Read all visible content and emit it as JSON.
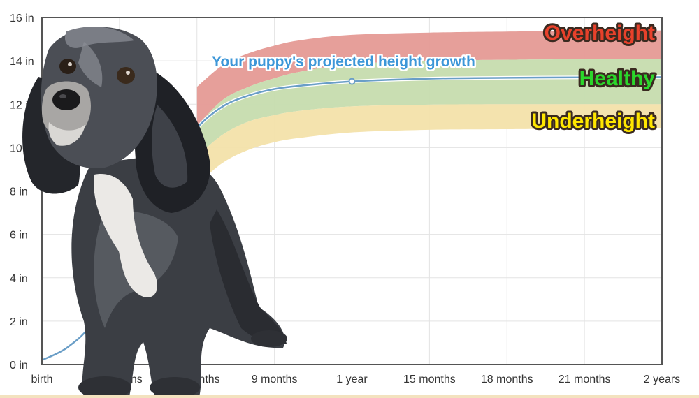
{
  "chart_data": {
    "type": "area",
    "title": "",
    "xlabel": "",
    "ylabel": "",
    "ylim": [
      0,
      16
    ],
    "xlim": [
      0,
      24
    ],
    "y_ticks": [
      {
        "value": 0,
        "label": "0 in"
      },
      {
        "value": 2,
        "label": "2 in"
      },
      {
        "value": 4,
        "label": "4 in"
      },
      {
        "value": 6,
        "label": "6 in"
      },
      {
        "value": 8,
        "label": "8 in"
      },
      {
        "value": 10,
        "label": "10 in"
      },
      {
        "value": 12,
        "label": "12 in"
      },
      {
        "value": 14,
        "label": "14 in"
      },
      {
        "value": 16,
        "label": "16 in"
      }
    ],
    "x_ticks": [
      {
        "value": 0,
        "label": "birth"
      },
      {
        "value": 3,
        "label": "3 months"
      },
      {
        "value": 6,
        "label": "6 months"
      },
      {
        "value": 9,
        "label": "9 months"
      },
      {
        "value": 12,
        "label": "1 year"
      },
      {
        "value": 15,
        "label": "15 months"
      },
      {
        "value": 18,
        "label": "18 months"
      },
      {
        "value": 21,
        "label": "21 months"
      },
      {
        "value": 24,
        "label": "2 years"
      }
    ],
    "grid": true,
    "bands": [
      {
        "name": "Overheight",
        "color": "#e59a95",
        "text_color": "#e8412b",
        "lower": [
          [
            6,
            11.0
          ],
          [
            7,
            12.2
          ],
          [
            8,
            12.8
          ],
          [
            9,
            13.2
          ],
          [
            10,
            13.5
          ],
          [
            12,
            13.85
          ],
          [
            15,
            14.0
          ],
          [
            18,
            14.05
          ],
          [
            24,
            14.1
          ]
        ],
        "upper": [
          [
            6,
            12.8
          ],
          [
            7,
            13.8
          ],
          [
            8,
            14.35
          ],
          [
            9,
            14.7
          ],
          [
            10,
            14.95
          ],
          [
            12,
            15.2
          ],
          [
            15,
            15.3
          ],
          [
            18,
            15.35
          ],
          [
            24,
            15.4
          ]
        ]
      },
      {
        "name": "Healthy",
        "color": "#c6dcae",
        "text_color": "#2bd62b",
        "lower": [
          [
            6,
            9.6
          ],
          [
            7,
            10.6
          ],
          [
            8,
            11.2
          ],
          [
            9,
            11.5
          ],
          [
            10,
            11.7
          ],
          [
            12,
            11.9
          ],
          [
            15,
            11.98
          ],
          [
            18,
            12.0
          ],
          [
            24,
            12.0
          ]
        ],
        "upper": [
          [
            6,
            11.0
          ],
          [
            7,
            12.2
          ],
          [
            8,
            12.8
          ],
          [
            9,
            13.2
          ],
          [
            10,
            13.5
          ],
          [
            12,
            13.85
          ],
          [
            15,
            14.0
          ],
          [
            18,
            14.05
          ],
          [
            24,
            14.1
          ]
        ]
      },
      {
        "name": "Underheight",
        "color": "#f3e2aa",
        "text_color": "#ffe600",
        "lower": [
          [
            6,
            8.3
          ],
          [
            7,
            9.3
          ],
          [
            8,
            9.9
          ],
          [
            9,
            10.25
          ],
          [
            10,
            10.45
          ],
          [
            12,
            10.7
          ],
          [
            15,
            10.82
          ],
          [
            18,
            10.85
          ],
          [
            24,
            10.9
          ]
        ],
        "upper": [
          [
            6,
            9.6
          ],
          [
            7,
            10.6
          ],
          [
            8,
            11.2
          ],
          [
            9,
            11.5
          ],
          [
            10,
            11.7
          ],
          [
            12,
            11.9
          ],
          [
            15,
            11.98
          ],
          [
            18,
            12.0
          ],
          [
            24,
            12.0
          ]
        ]
      }
    ],
    "series": [
      {
        "name": "Your puppy's projected height growth",
        "color": "#6a9ec7",
        "x": [
          0,
          1,
          2,
          3,
          4,
          5,
          6,
          7,
          8,
          9,
          10,
          12,
          15,
          18,
          21,
          24
        ],
        "y": [
          0.2,
          0.8,
          2.0,
          4.5,
          7.0,
          9.2,
          10.9,
          11.9,
          12.4,
          12.7,
          12.85,
          13.05,
          13.18,
          13.22,
          13.24,
          13.25
        ],
        "marker": {
          "x": 12,
          "y": 13.05
        }
      }
    ]
  }
}
